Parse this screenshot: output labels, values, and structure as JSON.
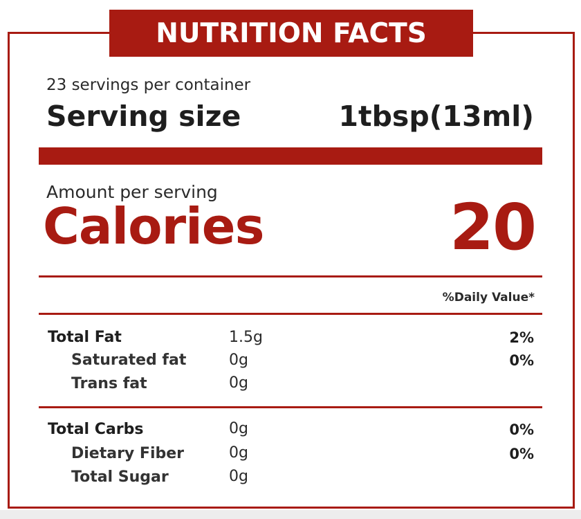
{
  "title": "NUTRITION FACTS",
  "servings_per_container": "23 servings per container",
  "serving_size": {
    "label": "Serving size",
    "value": "1tbsp(13ml)"
  },
  "amount_per_serving": "Amount per serving",
  "calories": {
    "label": "Calories",
    "value": "20"
  },
  "daily_value_header": "%Daily Value*",
  "groups": [
    {
      "rows": [
        {
          "name": "Total Fat",
          "amount": "1.5g",
          "dv": "2%"
        },
        {
          "name": "Saturated fat",
          "amount": "0g",
          "dv": "0%"
        },
        {
          "name": "Trans fat",
          "amount": "0g",
          "dv": ""
        }
      ]
    },
    {
      "rows": [
        {
          "name": "Total Carbs",
          "amount": "0g",
          "dv": "0%"
        },
        {
          "name": "Dietary Fiber",
          "amount": "0g",
          "dv": "0%"
        },
        {
          "name": "Total Sugar",
          "amount": "0g",
          "dv": ""
        }
      ]
    }
  ],
  "colors": {
    "accent": "#a81b12",
    "text": "#1e1e1e",
    "background": "#ffffff"
  }
}
